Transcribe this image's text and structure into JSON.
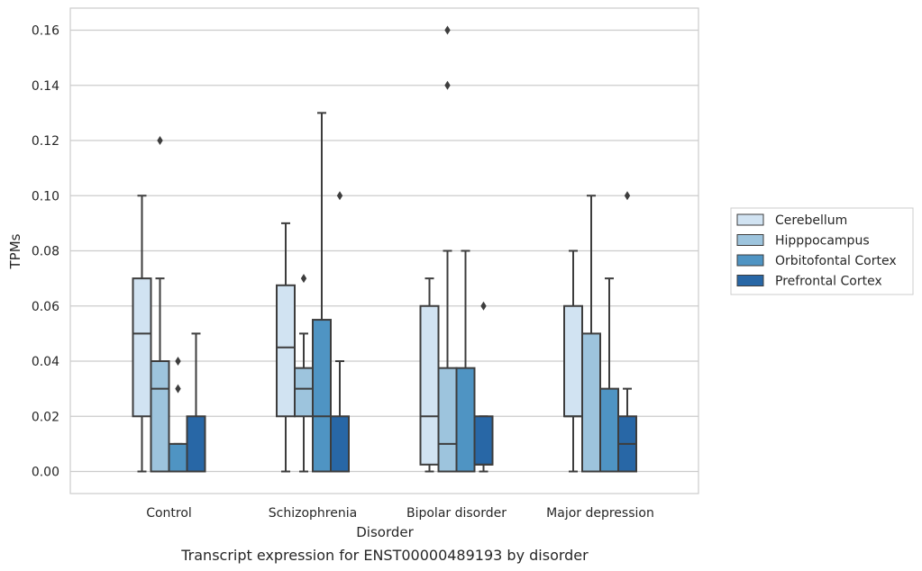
{
  "chart_data": {
    "type": "boxplot",
    "caption": "Transcript expression for ENST00000489193 by disorder",
    "xlabel": "Disorder",
    "ylabel": "TPMs",
    "ylim": [
      -0.008,
      0.168
    ],
    "yticks": [
      0.0,
      0.02,
      0.04,
      0.06,
      0.08,
      0.1,
      0.12,
      0.14,
      0.16
    ],
    "ytick_labels": [
      "0.00",
      "0.02",
      "0.04",
      "0.06",
      "0.08",
      "0.10",
      "0.12",
      "0.14",
      "0.16"
    ],
    "grid": "horizontal",
    "legend_position": "right",
    "categories": [
      "Control",
      "Schizophrenia",
      "Bipolar disorder",
      "Major depression"
    ],
    "series": [
      {
        "name": "Cerebellum",
        "color": "#d1e3f2",
        "boxes": [
          {
            "whislo": 0.0,
            "q1": 0.02,
            "med": 0.05,
            "q3": 0.07,
            "whishi": 0.1,
            "fliers": []
          },
          {
            "whislo": 0.0,
            "q1": 0.02,
            "med": 0.045,
            "q3": 0.0675,
            "whishi": 0.09,
            "fliers": []
          },
          {
            "whislo": 0.0,
            "q1": 0.0025,
            "med": 0.02,
            "q3": 0.06,
            "whishi": 0.07,
            "fliers": []
          },
          {
            "whislo": 0.0,
            "q1": 0.02,
            "med": 0.02,
            "q3": 0.06,
            "whishi": 0.08,
            "fliers": []
          }
        ]
      },
      {
        "name": "Hipppocampus",
        "color": "#9dc4dd",
        "boxes": [
          {
            "whislo": 0.0,
            "q1": 0.0,
            "med": 0.03,
            "q3": 0.04,
            "whishi": 0.07,
            "fliers": [
              0.12
            ]
          },
          {
            "whislo": 0.0,
            "q1": 0.02,
            "med": 0.03,
            "q3": 0.0375,
            "whishi": 0.05,
            "fliers": [
              0.07
            ]
          },
          {
            "whislo": 0.0,
            "q1": 0.0,
            "med": 0.01,
            "q3": 0.0375,
            "whishi": 0.08,
            "fliers": [
              0.14,
              0.16
            ]
          },
          {
            "whislo": 0.0,
            "q1": 0.0,
            "med": 0.0,
            "q3": 0.05,
            "whishi": 0.1,
            "fliers": []
          }
        ]
      },
      {
        "name": "Orbitofontal Cortex",
        "color": "#4f94c3",
        "boxes": [
          {
            "whislo": 0.0,
            "q1": 0.0,
            "med": 0.0,
            "q3": 0.01,
            "whishi": 0.01,
            "fliers": [
              0.03,
              0.04
            ]
          },
          {
            "whislo": 0.0,
            "q1": 0.0,
            "med": 0.02,
            "q3": 0.055,
            "whishi": 0.13,
            "fliers": []
          },
          {
            "whislo": 0.0,
            "q1": 0.0,
            "med": 0.0,
            "q3": 0.0375,
            "whishi": 0.08,
            "fliers": []
          },
          {
            "whislo": 0.0,
            "q1": 0.0,
            "med": 0.0,
            "q3": 0.03,
            "whishi": 0.07,
            "fliers": []
          }
        ]
      },
      {
        "name": "Prefrontal Cortex",
        "color": "#2867a6",
        "boxes": [
          {
            "whislo": 0.0,
            "q1": 0.0,
            "med": 0.0,
            "q3": 0.02,
            "whishi": 0.05,
            "fliers": []
          },
          {
            "whislo": 0.0,
            "q1": 0.0,
            "med": 0.0,
            "q3": 0.02,
            "whishi": 0.04,
            "fliers": [
              0.1
            ]
          },
          {
            "whislo": 0.0,
            "q1": 0.0025,
            "med": 0.0025,
            "q3": 0.02,
            "whishi": 0.02,
            "fliers": [
              0.06
            ]
          },
          {
            "whislo": 0.0,
            "q1": 0.0,
            "med": 0.01,
            "q3": 0.02,
            "whishi": 0.03,
            "fliers": [
              0.1
            ]
          }
        ]
      }
    ],
    "colors": {
      "line": "#3d3d3d",
      "grid": "#cccccc",
      "frame": "#cccccc",
      "text": "#262626"
    }
  }
}
